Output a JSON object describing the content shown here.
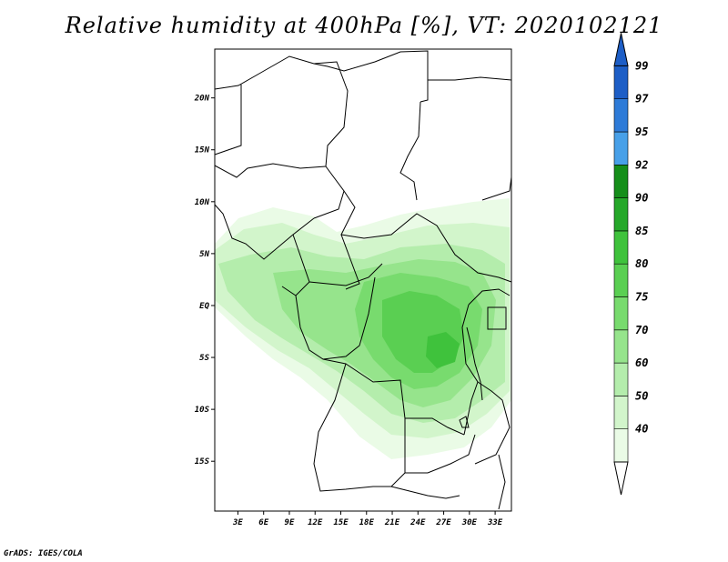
{
  "title": "Relative humidity at 400hPa [%], VT: 2020102121",
  "credit": "GrADS: IGES/COLA",
  "map": {
    "lat_labels": [
      "20N",
      "15N",
      "10N",
      "5N",
      "EQ",
      "5S",
      "10S",
      "15S"
    ],
    "lat_values": [
      20,
      15,
      10,
      5,
      0,
      -5,
      -10,
      -15
    ],
    "lon_labels": [
      "3E",
      "6E",
      "9E",
      "12E",
      "15E",
      "18E",
      "21E",
      "24E",
      "27E",
      "30E",
      "33E"
    ],
    "lon_values": [
      3,
      6,
      9,
      12,
      15,
      18,
      21,
      24,
      27,
      30,
      33
    ],
    "lon_range": [
      0.3,
      34.9
    ],
    "lat_range": [
      -19.8,
      24.7
    ]
  },
  "colorbar": {
    "labels": [
      "40",
      "50",
      "60",
      "70",
      "75",
      "80",
      "85",
      "90",
      "92",
      "95",
      "97",
      "99"
    ],
    "colors": [
      "#eafbe6",
      "#d2f5cb",
      "#b4edac",
      "#96e48c",
      "#78db6e",
      "#5acf52",
      "#3fc23c",
      "#26a82a",
      "#158e1a",
      "#48a0e8",
      "#2e7bd8",
      "#1d5ec6"
    ]
  },
  "legend_colors": {
    "land_border": "#000000",
    "light_green": "#d2f5cb",
    "mid_green": "#96e48c",
    "dark_green": "#5acf52"
  }
}
